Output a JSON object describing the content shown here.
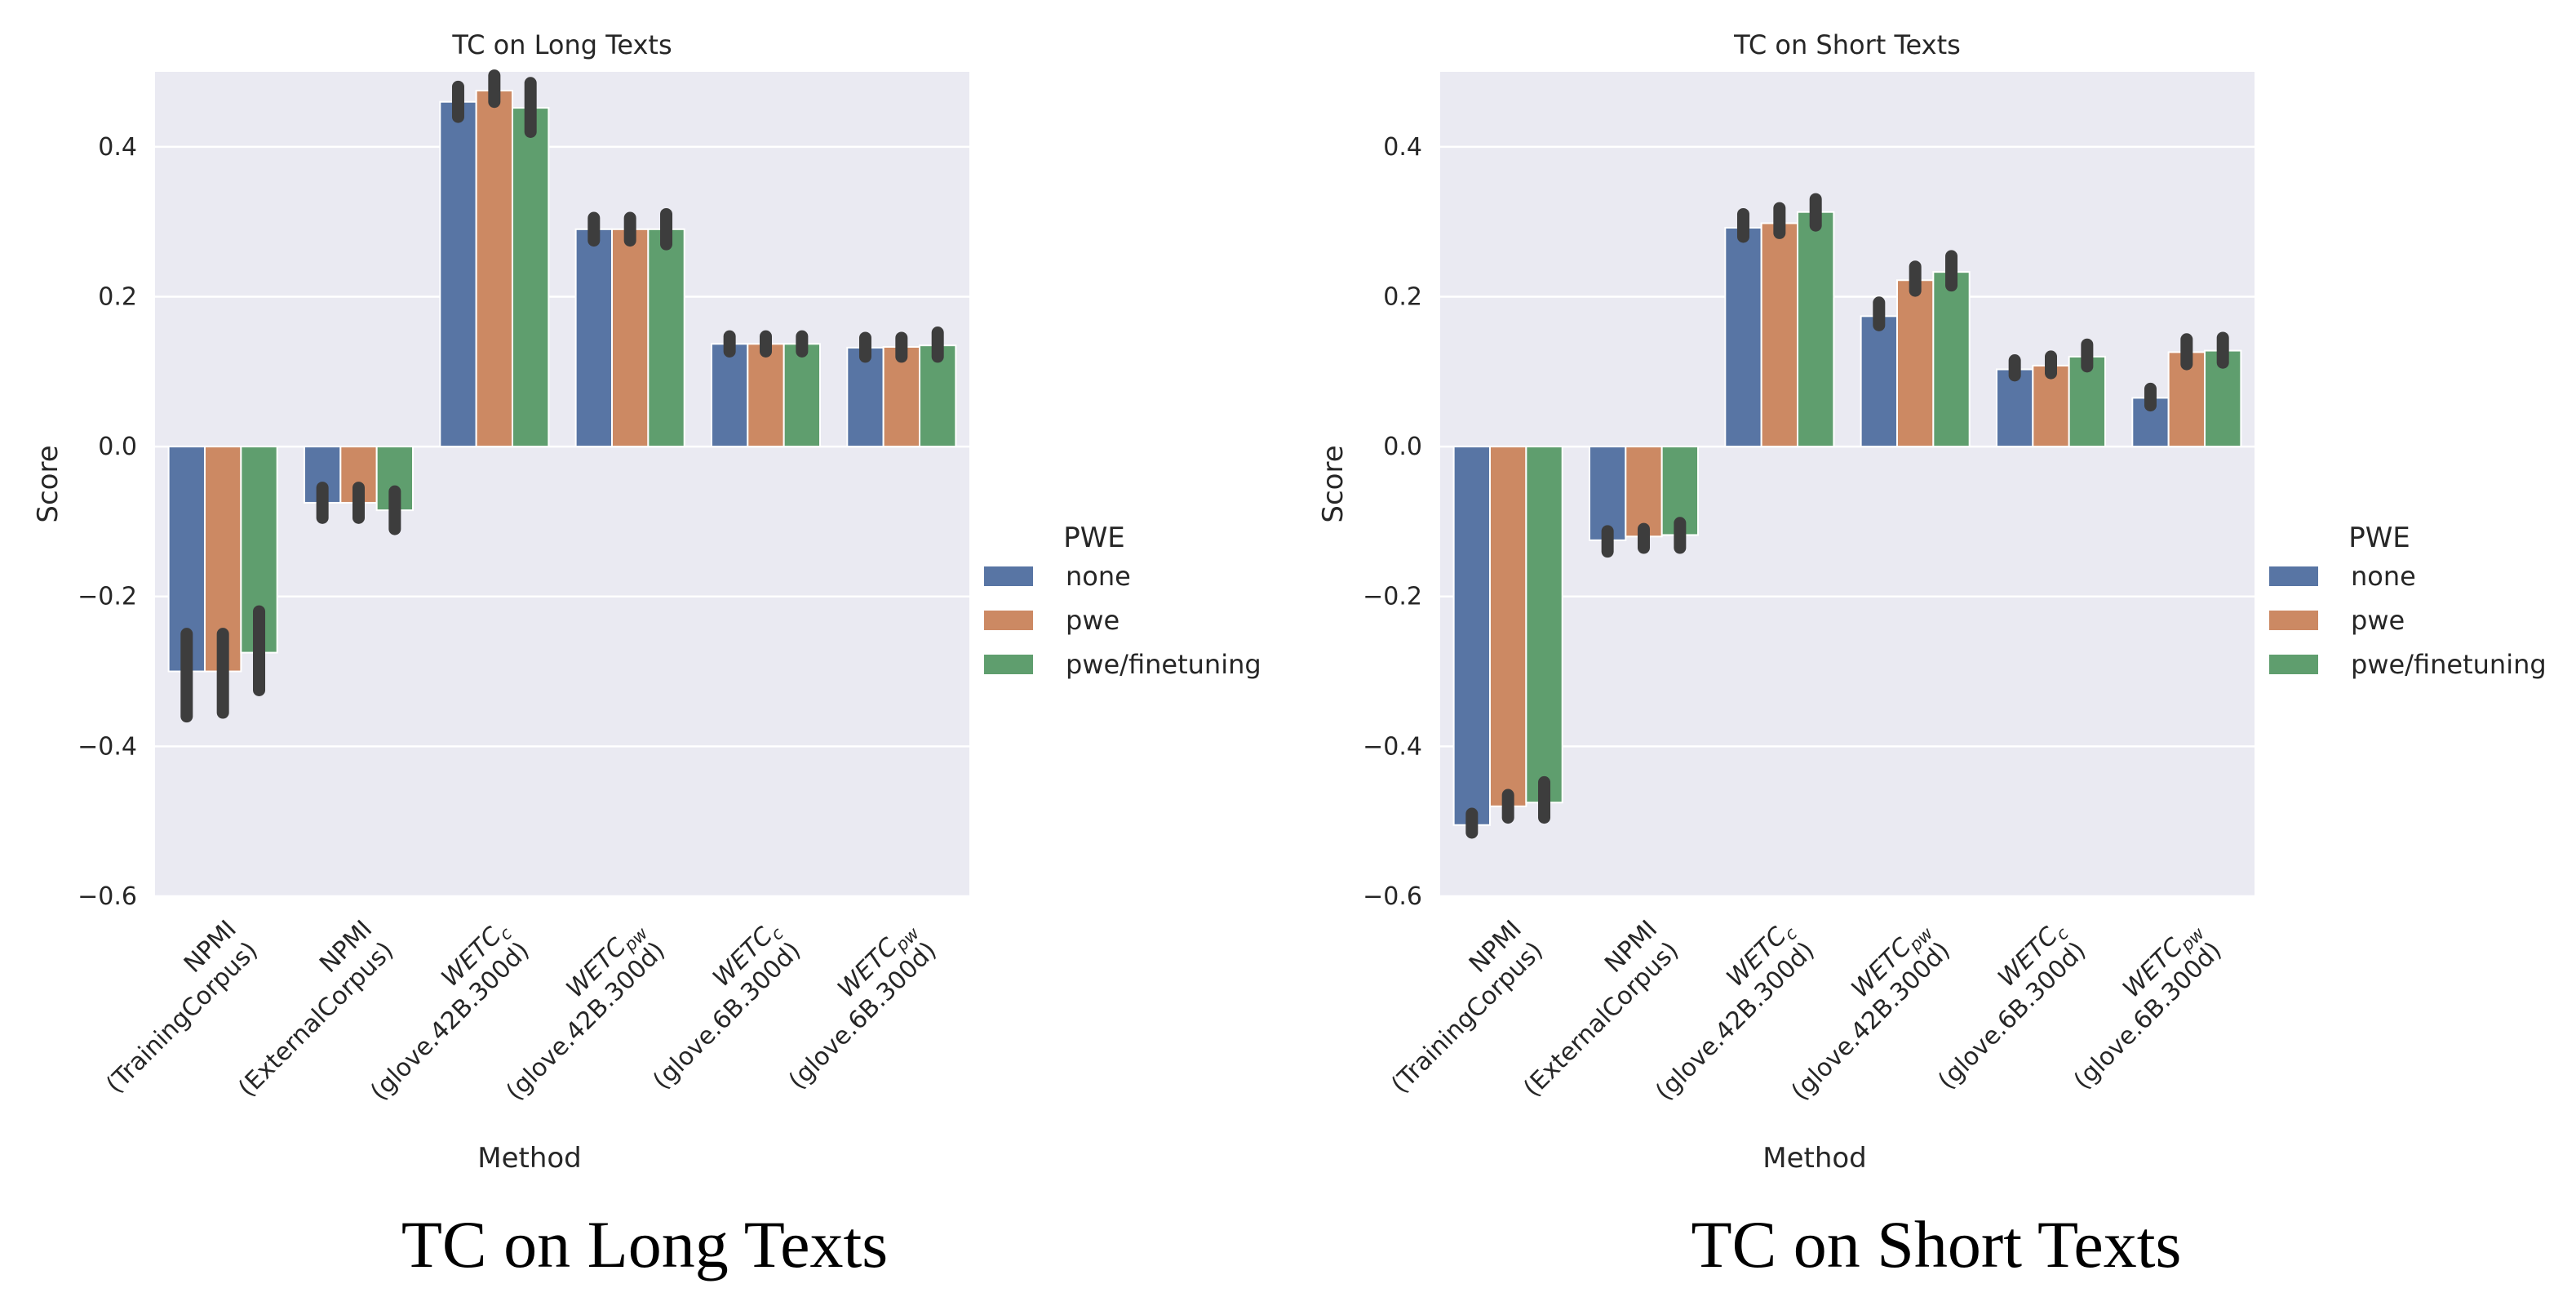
{
  "chart_data": [
    {
      "type": "bar",
      "title": "TC on Long Texts",
      "xlabel": "Method",
      "ylabel": "Score",
      "ylim": [
        -0.6,
        0.5
      ],
      "yticks": [
        "0.4",
        "0.2",
        "0.0",
        "−0.2",
        "−0.4",
        "−0.6"
      ],
      "grid": true,
      "legend": {
        "title": "PWE",
        "position": "right"
      },
      "categories": [
        {
          "line1": "NPMI",
          "line2": "(TrainingCorpus)",
          "sub": ""
        },
        {
          "line1": "NPMI",
          "line2": "(ExternalCorpus)",
          "sub": ""
        },
        {
          "line1": "WETC",
          "line2": "(glove.42B.300d)",
          "sub": "c"
        },
        {
          "line1": "WETC",
          "line2": "(glove.42B.300d)",
          "sub": "pw"
        },
        {
          "line1": "WETC",
          "line2": "(glove.6B.300d)",
          "sub": "c"
        },
        {
          "line1": "WETC",
          "line2": "(glove.6B.300d)",
          "sub": "pw"
        }
      ],
      "series": [
        {
          "name": "none",
          "color": "#5875a4",
          "values": [
            -0.3,
            -0.075,
            0.46,
            0.29,
            0.137,
            0.132
          ],
          "ci": [
            [
              -0.36,
              -0.25
            ],
            [
              -0.095,
              -0.055
            ],
            [
              0.44,
              0.48
            ],
            [
              0.275,
              0.305
            ],
            [
              0.127,
              0.147
            ],
            [
              0.12,
              0.145
            ]
          ]
        },
        {
          "name": "pwe",
          "color": "#cc8963",
          "values": [
            -0.3,
            -0.075,
            0.475,
            0.29,
            0.137,
            0.133
          ],
          "ci": [
            [
              -0.355,
              -0.25
            ],
            [
              -0.095,
              -0.055
            ],
            [
              0.46,
              0.495
            ],
            [
              0.275,
              0.305
            ],
            [
              0.127,
              0.147
            ],
            [
              0.12,
              0.145
            ]
          ]
        },
        {
          "name": "pwe/finetuning",
          "color": "#5f9e6e",
          "values": [
            -0.275,
            -0.085,
            0.452,
            0.29,
            0.137,
            0.135
          ],
          "ci": [
            [
              -0.325,
              -0.22
            ],
            [
              -0.11,
              -0.06
            ],
            [
              0.42,
              0.485
            ],
            [
              0.27,
              0.31
            ],
            [
              0.127,
              0.147
            ],
            [
              0.12,
              0.152
            ]
          ]
        }
      ]
    },
    {
      "type": "bar",
      "title": "TC on Short Texts",
      "xlabel": "Method",
      "ylabel": "Score",
      "ylim": [
        -0.6,
        0.5
      ],
      "yticks": [
        "0.4",
        "0.2",
        "0.0",
        "−0.2",
        "−0.4",
        "−0.6"
      ],
      "grid": true,
      "legend": {
        "title": "PWE",
        "position": "right"
      },
      "categories": [
        {
          "line1": "NPMI",
          "line2": "(TrainingCorpus)",
          "sub": ""
        },
        {
          "line1": "NPMI",
          "line2": "(ExternalCorpus)",
          "sub": ""
        },
        {
          "line1": "WETC",
          "line2": "(glove.42B.300d)",
          "sub": "c"
        },
        {
          "line1": "WETC",
          "line2": "(glove.42B.300d)",
          "sub": "pw"
        },
        {
          "line1": "WETC",
          "line2": "(glove.6B.300d)",
          "sub": "c"
        },
        {
          "line1": "WETC",
          "line2": "(glove.6B.300d)",
          "sub": "pw"
        }
      ],
      "series": [
        {
          "name": "none",
          "color": "#5875a4",
          "values": [
            -0.505,
            -0.125,
            0.292,
            0.174,
            0.103,
            0.065
          ],
          "ci": [
            [
              -0.515,
              -0.49
            ],
            [
              -0.14,
              -0.113
            ],
            [
              0.28,
              0.31
            ],
            [
              0.162,
              0.192
            ],
            [
              0.095,
              0.115
            ],
            [
              0.055,
              0.077
            ]
          ]
        },
        {
          "name": "pwe",
          "color": "#cc8963",
          "values": [
            -0.48,
            -0.12,
            0.298,
            0.222,
            0.108,
            0.126
          ],
          "ci": [
            [
              -0.495,
              -0.465
            ],
            [
              -0.135,
              -0.11
            ],
            [
              0.285,
              0.318
            ],
            [
              0.208,
              0.24
            ],
            [
              0.098,
              0.12
            ],
            [
              0.11,
              0.143
            ]
          ]
        },
        {
          "name": "pwe/finetuning",
          "color": "#5f9e6e",
          "values": [
            -0.475,
            -0.118,
            0.313,
            0.233,
            0.12,
            0.128
          ],
          "ci": [
            [
              -0.495,
              -0.448
            ],
            [
              -0.135,
              -0.102
            ],
            [
              0.295,
              0.33
            ],
            [
              0.215,
              0.254
            ],
            [
              0.107,
              0.136
            ],
            [
              0.112,
              0.145
            ]
          ]
        }
      ]
    }
  ],
  "captions": [
    "TC on Long Texts",
    "TC on Short Texts"
  ]
}
